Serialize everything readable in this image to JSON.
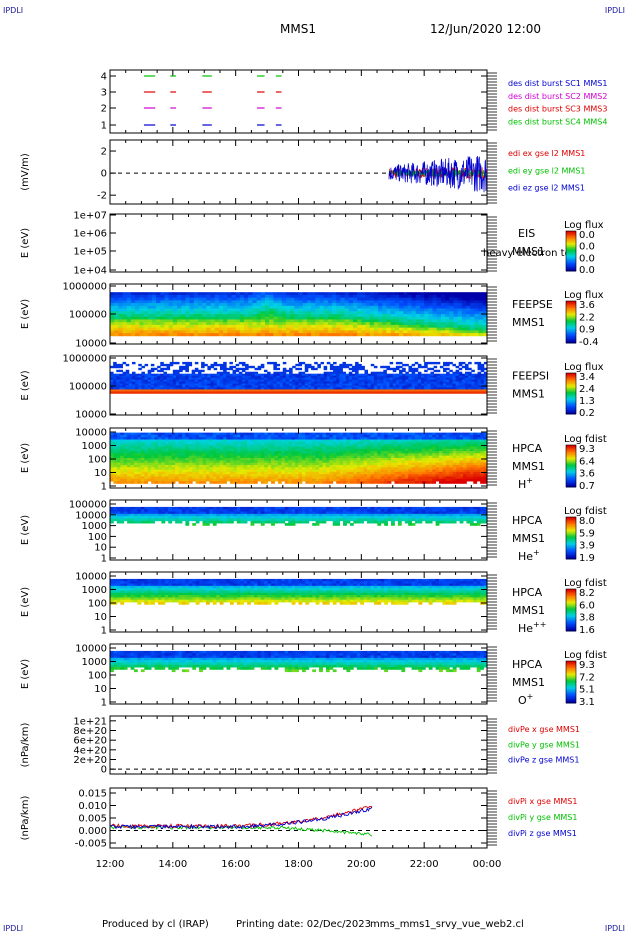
{
  "corners": {
    "tl": "IPDLI",
    "tr": "IPDLI",
    "bl": "IPDLI",
    "br": "IPDLI"
  },
  "header": {
    "spacecraft": "MMS1",
    "date": "12/Jun/2020 12:00"
  },
  "footer": {
    "produced_by": "Produced by cl (IRAP)",
    "printing_date": "Printing date: 02/Dec/2023",
    "filename": "mms_mms1_srvy_vue_web2.cl"
  },
  "colors": {
    "red": "#e00000",
    "green": "#00c000",
    "blue": "#0000d0",
    "magenta": "#d000d0",
    "dark_blue": "#0000a0"
  },
  "chart_data": [
    {
      "type": "line",
      "title": "",
      "ylabel": "",
      "ticks": [
        "1",
        "2",
        "3",
        "4"
      ],
      "ylim": [
        0.5,
        4.5
      ],
      "legend": [
        {
          "text": "des dist burst SC1 MMS1",
          "color": "#0000d0"
        },
        {
          "text": "des dist burst SC2 MMS2",
          "color": "#d000d0"
        },
        {
          "text": "des dist burst SC3 MMS3",
          "color": "#e00000"
        },
        {
          "text": "des dist burst SC4 MMS4",
          "color": "#00c000"
        }
      ]
    },
    {
      "type": "line",
      "ylabel": "(mV/m)",
      "ticks": [
        "-2",
        "0",
        "2"
      ],
      "ylim": [
        -2.8,
        3.0
      ],
      "series": [
        {
          "name": "edi ex gse l2 MMS1",
          "color": "#e00000"
        },
        {
          "name": "edi ey gse l2 MMS1",
          "color": "#00c000"
        },
        {
          "name": "edi ez gse l2 MMS1",
          "color": "#0000d0"
        }
      ]
    },
    {
      "type": "heatmap",
      "ylabel": "E (eV)",
      "ticks": [
        "1e+04",
        "1e+05",
        "1e+06",
        "1e+07"
      ],
      "labels": [
        "EIS",
        "MMS1"
      ],
      "overlay": "heavy electron to",
      "cbar_title": "Log flux",
      "cbar": [
        "0.0",
        "0.0",
        "0.0",
        "0.0"
      ]
    },
    {
      "type": "heatmap",
      "ylabel": "E (eV)",
      "ticks": [
        "10000",
        "100000",
        "1000000"
      ],
      "labels": [
        "FEEPSE",
        "MMS1"
      ],
      "cbar_title": "Log flux",
      "cbar": [
        "3.6",
        "2.2",
        "0.9",
        "-0.4"
      ]
    },
    {
      "type": "heatmap",
      "ylabel": "E (eV)",
      "ticks": [
        "10000",
        "100000",
        "1000000"
      ],
      "labels": [
        "FEEPSI",
        "MMS1"
      ],
      "cbar_title": "Log flux",
      "cbar": [
        "3.4",
        "2.4",
        "1.3",
        "0.2"
      ]
    },
    {
      "type": "heatmap",
      "ylabel": "E (eV)",
      "ticks": [
        "1",
        "10",
        "100",
        "1000",
        "10000"
      ],
      "labels": [
        "HPCA",
        "MMS1",
        "H+"
      ],
      "cbar_title": "Log fdist",
      "cbar": [
        "9.3",
        "6.4",
        "3.6",
        "0.7"
      ]
    },
    {
      "type": "heatmap",
      "ylabel": "E (eV)",
      "ticks": [
        "1",
        "10",
        "100",
        "1000",
        "10000",
        "100000"
      ],
      "labels": [
        "HPCA",
        "MMS1",
        "He+"
      ],
      "cbar_title": "Log fdist",
      "cbar": [
        "8.0",
        "5.9",
        "3.9",
        "1.9"
      ]
    },
    {
      "type": "heatmap",
      "ylabel": "E (eV)",
      "ticks": [
        "1",
        "10",
        "100",
        "1000",
        "10000"
      ],
      "labels": [
        "HPCA",
        "MMS1",
        "He++"
      ],
      "cbar_title": "Log fdist",
      "cbar": [
        "8.2",
        "6.0",
        "3.8",
        "1.6"
      ]
    },
    {
      "type": "heatmap",
      "ylabel": "E (eV)",
      "ticks": [
        "1",
        "10",
        "100",
        "1000",
        "10000"
      ],
      "labels": [
        "HPCA",
        "MMS1",
        "O+"
      ],
      "cbar_title": "Log fdist",
      "cbar": [
        "9.3",
        "7.2",
        "5.1",
        "3.1"
      ]
    },
    {
      "type": "line",
      "ylabel": "(nPa/km)",
      "ticks": [
        "0",
        "2e+20",
        "4e+20",
        "6e+20",
        "8e+20",
        "1e+21"
      ],
      "ylim": [
        -1e+20,
        1.1e+21
      ],
      "series": [
        {
          "name": "divPe x gse MMS1",
          "color": "#e00000"
        },
        {
          "name": "divPe y gse MMS1",
          "color": "#00c000"
        },
        {
          "name": "divPe z gse MMS1",
          "color": "#0000d0"
        }
      ]
    },
    {
      "type": "line",
      "ylabel": "(nPa/km)",
      "ticks": [
        "-0.005",
        "0.000",
        "0.005",
        "0.010",
        "0.015"
      ],
      "ylim": [
        -0.007,
        0.017
      ],
      "series": [
        {
          "name": "divPi x gse MMS1",
          "color": "#e00000"
        },
        {
          "name": "divPi y gse MMS1",
          "color": "#00c000"
        },
        {
          "name": "divPi z gse MMS1",
          "color": "#0000d0"
        }
      ],
      "xticks": [
        "12:00",
        "14:00",
        "16:00",
        "18:00",
        "20:00",
        "22:00",
        "00:00"
      ]
    }
  ]
}
